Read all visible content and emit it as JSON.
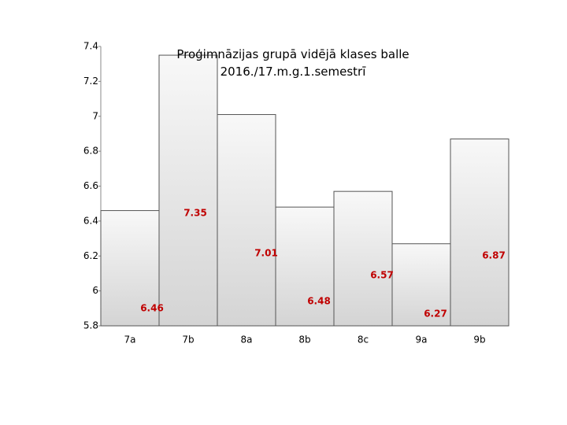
{
  "chart_data": {
    "type": "bar",
    "title": "Proģimnāzijas grupā vidējā klases balle 2016./17.m.g.1.semestrī",
    "categories": [
      "7a",
      "7b",
      "8a",
      "8b",
      "8c",
      "9a",
      "9b"
    ],
    "values": [
      6.46,
      7.35,
      7.01,
      6.48,
      6.57,
      6.27,
      6.87
    ],
    "color": "#e6e6e6",
    "label_color": "#c00000",
    "ylim": [
      5.8,
      7.4
    ],
    "yticks": [
      5.8,
      6,
      6.2,
      6.4,
      6.6,
      6.8,
      7,
      7.2,
      7.4
    ],
    "grid": false
  }
}
